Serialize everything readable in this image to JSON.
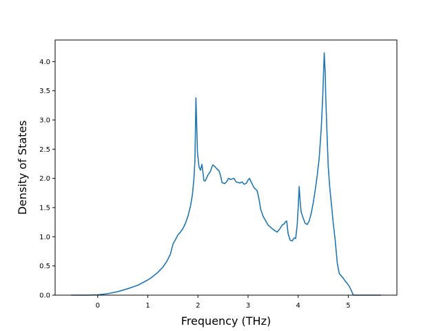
{
  "chart_data": {
    "type": "line",
    "title": "",
    "xlabel": "Frequency (THz)",
    "ylabel": "Density of States",
    "xlim": [
      -0.85,
      5.97
    ],
    "ylim": [
      0.0,
      4.37
    ],
    "xticks": [
      0,
      1,
      2,
      3,
      4,
      5
    ],
    "yticks": [
      0.0,
      0.5,
      1.0,
      1.5,
      2.0,
      2.5,
      3.0,
      3.5,
      4.0
    ],
    "xtick_labels": [
      "0",
      "1",
      "2",
      "3",
      "4",
      "5"
    ],
    "ytick_labels": [
      "0.0",
      "0.5",
      "1.0",
      "1.5",
      "2.0",
      "2.5",
      "3.0",
      "3.5",
      "4.0"
    ],
    "grid": false,
    "line_color": "#1f77b4",
    "series": [
      {
        "x": [
          -0.53,
          -0.2,
          0.0,
          0.2,
          0.4,
          0.6,
          0.8,
          1.0,
          1.1,
          1.2,
          1.3,
          1.38,
          1.45,
          1.5,
          1.55,
          1.6,
          1.65,
          1.7,
          1.75,
          1.8,
          1.85,
          1.89,
          1.92,
          1.94,
          1.96,
          1.99,
          2.02,
          2.05,
          2.08,
          2.12,
          2.15,
          2.2,
          2.25,
          2.28,
          2.3,
          2.34,
          2.38,
          2.42,
          2.45,
          2.48,
          2.53,
          2.57,
          2.61,
          2.65,
          2.68,
          2.72,
          2.76,
          2.8,
          2.84,
          2.88,
          2.92,
          2.96,
          3.0,
          3.03,
          3.06,
          3.12,
          3.18,
          3.22,
          3.25,
          3.3,
          3.4,
          3.48,
          3.54,
          3.58,
          3.63,
          3.68,
          3.72,
          3.74,
          3.77,
          3.8,
          3.84,
          3.88,
          3.92,
          3.95,
          3.98,
          4.0,
          4.02,
          4.04,
          4.06,
          4.1,
          4.14,
          4.18,
          4.22,
          4.26,
          4.3,
          4.34,
          4.38,
          4.42,
          4.46,
          4.49,
          4.52,
          4.54,
          4.55,
          4.57,
          4.6,
          4.63,
          4.67,
          4.7,
          4.74,
          4.78,
          4.82,
          4.86,
          4.9,
          4.94,
          4.98,
          5.02,
          5.06,
          5.1,
          5.15,
          5.2,
          5.3,
          5.4,
          5.65
        ],
        "y": [
          0.0,
          0.0,
          0.005,
          0.025,
          0.06,
          0.11,
          0.17,
          0.26,
          0.32,
          0.39,
          0.48,
          0.58,
          0.7,
          0.87,
          0.95,
          1.03,
          1.08,
          1.14,
          1.23,
          1.35,
          1.52,
          1.72,
          2.0,
          2.3,
          3.38,
          2.45,
          2.2,
          2.14,
          2.24,
          1.96,
          1.96,
          2.06,
          2.12,
          2.2,
          2.23,
          2.2,
          2.16,
          2.13,
          2.05,
          1.93,
          1.91,
          1.94,
          2.0,
          1.98,
          1.99,
          2.0,
          1.94,
          1.93,
          1.92,
          1.94,
          1.9,
          1.91,
          1.97,
          2.0,
          1.94,
          1.84,
          1.79,
          1.64,
          1.48,
          1.35,
          1.2,
          1.14,
          1.1,
          1.08,
          1.13,
          1.2,
          1.22,
          1.25,
          1.27,
          1.05,
          0.94,
          0.93,
          0.98,
          0.97,
          1.2,
          1.5,
          1.86,
          1.6,
          1.42,
          1.32,
          1.23,
          1.21,
          1.27,
          1.4,
          1.58,
          1.8,
          2.05,
          2.35,
          2.85,
          3.4,
          4.15,
          3.8,
          3.4,
          2.9,
          2.2,
          1.85,
          1.5,
          1.23,
          0.93,
          0.55,
          0.37,
          0.33,
          0.29,
          0.24,
          0.2,
          0.15,
          0.08,
          0.0,
          0.0,
          0.0,
          0.0,
          0.0,
          0.0
        ]
      }
    ]
  }
}
